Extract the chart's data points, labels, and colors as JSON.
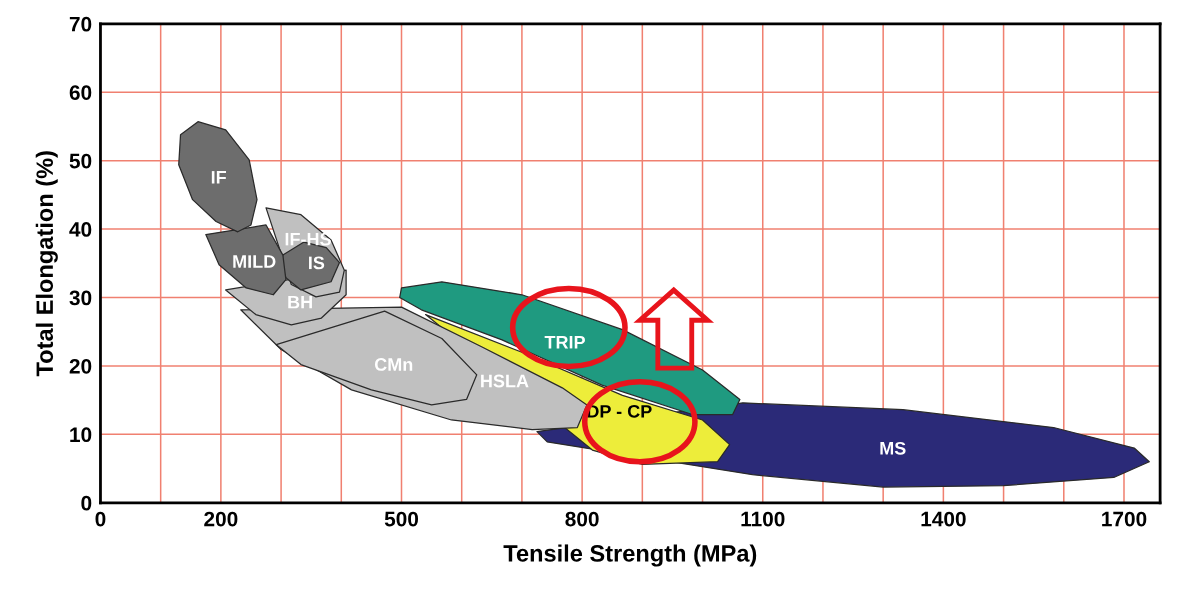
{
  "chart_data": {
    "type": "area",
    "xlabel": "Tensile Strength (MPa)",
    "ylabel": "Total Elongation (%)",
    "xlim": [
      0,
      1760
    ],
    "ylim": [
      0,
      70
    ],
    "xticks": [
      0,
      {
        "value": 100,
        "label": null
      },
      200,
      {
        "value": 300,
        "label": null
      },
      {
        "value": 400,
        "label": null
      },
      500,
      {
        "value": 600,
        "label": null
      },
      {
        "value": 700,
        "label": null
      },
      800,
      {
        "value": 900,
        "label": null
      },
      {
        "value": 1000,
        "label": null
      },
      1100,
      {
        "value": 1200,
        "label": null
      },
      {
        "value": 1300,
        "label": null
      },
      1400,
      {
        "value": 1500,
        "label": null
      },
      {
        "value": 1600,
        "label": null
      },
      1700
    ],
    "yticks": [
      0,
      10,
      20,
      30,
      40,
      50,
      60,
      70
    ],
    "grid": true,
    "series": [
      {
        "name": "MS",
        "color": "#2b2a78",
        "x": [
          725,
          1067,
          1333,
          1583,
          1717,
          1742,
          1683,
          1500,
          1300,
          1083,
          742
        ],
        "values": [
          10.4,
          14.6,
          13.6,
          11.0,
          8.0,
          6.0,
          3.7,
          2.5,
          2.3,
          4.1,
          8.9
        ]
      },
      {
        "name": "DP - CP",
        "color": "#eded3a",
        "x": [
          540,
          700,
          867,
          1000,
          1045,
          1025,
          900,
          817
        ],
        "values": [
          27.5,
          22.0,
          15.7,
          12.1,
          8.5,
          6.0,
          5.6,
          7.7
        ]
      },
      {
        "name": "TRIP",
        "color": "#1f9a80",
        "x": [
          500,
          567,
          700,
          867,
          1000,
          1062,
          1050,
          983,
          833,
          667,
          533,
          497
        ],
        "values": [
          31.4,
          32.3,
          30.4,
          25.3,
          19.4,
          15.1,
          12.9,
          12.9,
          17.2,
          23.8,
          28.2,
          30.0
        ]
      },
      {
        "name": "HSLA",
        "color": "#c0c0c0",
        "x": [
          500,
          633,
          767,
          808,
          792,
          717,
          583,
          417,
          300,
          233
        ],
        "values": [
          28.6,
          22.8,
          16.8,
          14.3,
          11.0,
          10.7,
          12.1,
          16.5,
          22.4,
          28.2
        ]
      },
      {
        "name": "CMn",
        "color": "#c0c0c0",
        "x": [
          472,
          567,
          625,
          608,
          550,
          450,
          333,
          292
        ],
        "values": [
          28.0,
          24.0,
          18.7,
          15.1,
          14.3,
          16.5,
          20.2,
          23.1
        ]
      },
      {
        "name": "BH",
        "color": "#c0c0c0",
        "x": [
          408,
          408,
          367,
          317,
          258,
          208
        ],
        "values": [
          34.0,
          30.4,
          27.0,
          26.0,
          27.5,
          31.1
        ]
      },
      {
        "name": "IF-HS",
        "color": "#c0c0c0",
        "x": [
          275,
          333,
          383,
          405,
          397,
          358,
          317
        ],
        "values": [
          43.1,
          42.1,
          38.4,
          34.0,
          30.8,
          30.1,
          31.9
        ]
      },
      {
        "name": "IS",
        "color": "#6d6d6d",
        "x": [
          303,
          338,
          375,
          397,
          383,
          333,
          308,
          300
        ],
        "values": [
          36.2,
          38.1,
          37.3,
          35.1,
          32.3,
          31.1,
          32.9,
          34.8
        ]
      },
      {
        "name": "MILD",
        "color": "#6d6d6d",
        "x": [
          275,
          303,
          308,
          287,
          242,
          197,
          175
        ],
        "values": [
          40.6,
          36.2,
          32.6,
          30.4,
          31.4,
          34.8,
          39.2
        ]
      },
      {
        "name": "IF",
        "color": "#6d6d6d",
        "x": [
          162,
          208,
          247,
          260,
          250,
          228,
          192,
          153,
          130,
          133
        ],
        "values": [
          55.7,
          54.5,
          50.1,
          44.3,
          40.6,
          39.6,
          41.1,
          44.3,
          49.4,
          53.8
        ]
      }
    ]
  }
}
